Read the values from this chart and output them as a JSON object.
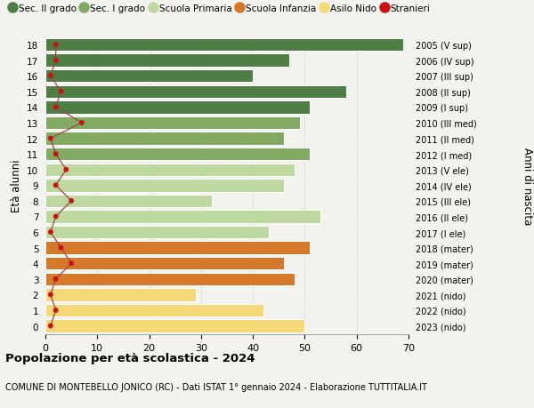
{
  "ages": [
    18,
    17,
    16,
    15,
    14,
    13,
    12,
    11,
    10,
    9,
    8,
    7,
    6,
    5,
    4,
    3,
    2,
    1,
    0
  ],
  "values": [
    69,
    47,
    40,
    58,
    51,
    49,
    46,
    51,
    48,
    46,
    32,
    53,
    43,
    51,
    46,
    48,
    29,
    42,
    50
  ],
  "stranieri": [
    2,
    2,
    1,
    3,
    2,
    7,
    1,
    2,
    4,
    2,
    5,
    2,
    1,
    3,
    5,
    2,
    1,
    2,
    1
  ],
  "right_labels": [
    "2005 (V sup)",
    "2006 (IV sup)",
    "2007 (III sup)",
    "2008 (II sup)",
    "2009 (I sup)",
    "2010 (III med)",
    "2011 (II med)",
    "2012 (I med)",
    "2013 (V ele)",
    "2014 (IV ele)",
    "2015 (III ele)",
    "2016 (II ele)",
    "2017 (I ele)",
    "2018 (mater)",
    "2019 (mater)",
    "2020 (mater)",
    "2021 (nido)",
    "2022 (nido)",
    "2023 (nido)"
  ],
  "bar_colors": [
    "#4e7e45",
    "#4e7e45",
    "#4e7e45",
    "#4e7e45",
    "#4e7e45",
    "#82aa62",
    "#82aa62",
    "#82aa62",
    "#bdd9a0",
    "#bdd9a0",
    "#bdd9a0",
    "#bdd9a0",
    "#bdd9a0",
    "#d4782a",
    "#d4782a",
    "#d4782a",
    "#f5d878",
    "#f5d878",
    "#f5d878"
  ],
  "legend_labels": [
    "Sec. II grado",
    "Sec. I grado",
    "Scuola Primaria",
    "Scuola Infanzia",
    "Asilo Nido",
    "Stranieri"
  ],
  "legend_colors": [
    "#4e7e45",
    "#82aa62",
    "#bdd9a0",
    "#d4782a",
    "#f5d878",
    "#cc1111"
  ],
  "stranieri_color": "#cc1111",
  "stranieri_line_color": "#99444a",
  "ylabel": "Età alunni",
  "ylabel_right": "Anni di nascita",
  "title": "Popolazione per età scolastica - 2024",
  "subtitle": "COMUNE DI MONTEBELLO JONICO (RC) - Dati ISTAT 1° gennaio 2024 - Elaborazione TUTTITALIA.IT",
  "xlim": [
    0,
    70
  ],
  "background_color": "#f2f2ee",
  "bar_height": 0.82,
  "grid_color": "#cccccc"
}
